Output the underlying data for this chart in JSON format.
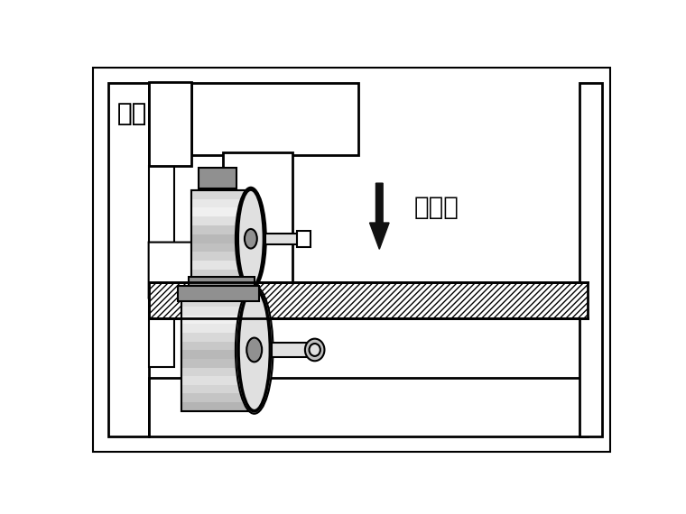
{
  "title_text": "滚轮",
  "label_text": "下压力",
  "bg_color": "#ffffff",
  "line_color": "#000000",
  "gray_light": "#e0e0e0",
  "gray_mid": "#c0c0c0",
  "gray_dark": "#909090",
  "gray_darker": "#707070",
  "gray_darkest": "#505050",
  "white": "#ffffff",
  "arrow_color": "#111111",
  "fig_width": 7.6,
  "fig_height": 5.7,
  "dpi": 100
}
